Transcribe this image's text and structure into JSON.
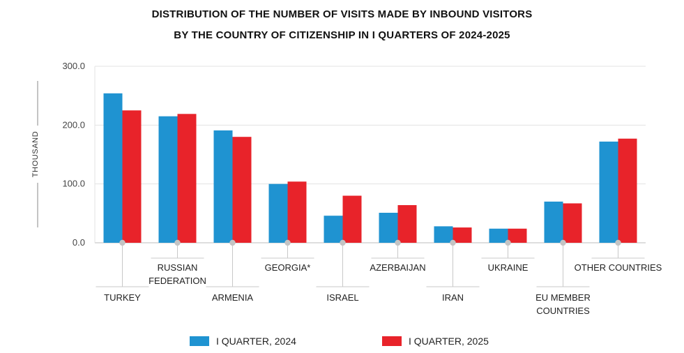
{
  "title_line1": "DISTRIBUTION OF THE NUMBER OF VISITS MADE BY INBOUND VISITORS",
  "title_line2": "BY THE COUNTRY OF CITIZENSHIP IN I QUARTERS OF 2024-2025",
  "colors": {
    "series_2024": "#1f93d1",
    "series_2025": "#e8232a",
    "grid": "#e3e3e3",
    "axis": "#bdbdbd",
    "leader": "#c8c8c8",
    "dot": "#c4c4c4"
  },
  "chart_data": {
    "type": "bar",
    "title": "DISTRIBUTION OF THE NUMBER OF VISITS MADE BY INBOUND VISITORS BY THE COUNTRY OF CITIZENSHIP IN I QUARTERS OF 2024-2025",
    "ylabel": "THOUSAND",
    "xlabel": "",
    "ylim": [
      0,
      300
    ],
    "yticks": [
      0,
      100,
      200,
      300
    ],
    "ytick_labels": [
      "0.0",
      "100.0",
      "200.0",
      "300.0"
    ],
    "grid": true,
    "legend_position": "bottom",
    "categories": [
      {
        "lines": [
          "TURKEY"
        ],
        "level": "low"
      },
      {
        "lines": [
          "RUSSIAN",
          "FEDERATION"
        ],
        "level": "high"
      },
      {
        "lines": [
          "ARMENIA"
        ],
        "level": "low"
      },
      {
        "lines": [
          "GEORGIA*"
        ],
        "level": "high"
      },
      {
        "lines": [
          "ISRAEL"
        ],
        "level": "low"
      },
      {
        "lines": [
          "AZERBAIJAN"
        ],
        "level": "high"
      },
      {
        "lines": [
          "IRAN"
        ],
        "level": "low"
      },
      {
        "lines": [
          "UKRAINE"
        ],
        "level": "high"
      },
      {
        "lines": [
          "EU MEMBER",
          "COUNTRIES"
        ],
        "level": "low"
      },
      {
        "lines": [
          "OTHER COUNTRIES"
        ],
        "level": "high"
      }
    ],
    "series": [
      {
        "name": "I QUARTER, 2024",
        "color": "#1f93d1",
        "values": [
          254,
          215,
          191,
          100,
          46,
          51,
          28,
          24,
          70,
          172
        ]
      },
      {
        "name": "I QUARTER, 2025",
        "color": "#e8232a",
        "values": [
          225,
          219,
          180,
          104,
          80,
          64,
          26,
          24,
          67,
          177
        ]
      }
    ]
  }
}
